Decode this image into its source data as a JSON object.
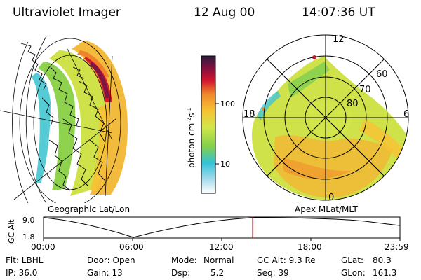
{
  "header": {
    "instrument": "Ultraviolet Imager",
    "date": "12 Aug 00",
    "time": "14:07:36 UT"
  },
  "colorbar": {
    "label": "photon cm",
    "label_exp1": "-2",
    "label_mid": "s",
    "label_exp2": "-1",
    "ticks": [
      "100",
      "10"
    ],
    "scale": "log",
    "colors": [
      "#2a1c3a",
      "#7a1040",
      "#d3142e",
      "#f08a2a",
      "#f7c233",
      "#d2e64a",
      "#82d04a",
      "#32c2d8",
      "#a8dcec",
      "#ffffff"
    ]
  },
  "geo_panel": {
    "label": "Geographic Lat/Lon"
  },
  "polar_panel": {
    "label": "Apex MLat/MLT",
    "mlt_labels": [
      "12",
      "18",
      "6",
      "0"
    ],
    "mlat_labels": [
      "60",
      "70",
      "80"
    ]
  },
  "timeline": {
    "ylabel": "GC Alt",
    "yticks": [
      "9.0",
      "1.8"
    ],
    "xticks": [
      "00:00",
      "06:00",
      "12:00",
      "18:00",
      "23:59"
    ],
    "current_marker_time": "14:07:36",
    "marker_color": "#e0141e"
  },
  "status": {
    "flt": "Flt: LBHL",
    "door": "Door: Open",
    "mode_label": "Mode:",
    "mode_value": "Normal",
    "gcalt": "GC Alt: 9.3 Re",
    "glat_label": "GLat:",
    "glat_value": "80.3",
    "ip": "IP: 36.0",
    "gain": "Gain: 13",
    "dsp_label": "Dsp:",
    "dsp_value": "5.2",
    "seq": "Seq: 39",
    "glon_label": "GLon:",
    "glon_value": "161.3"
  }
}
